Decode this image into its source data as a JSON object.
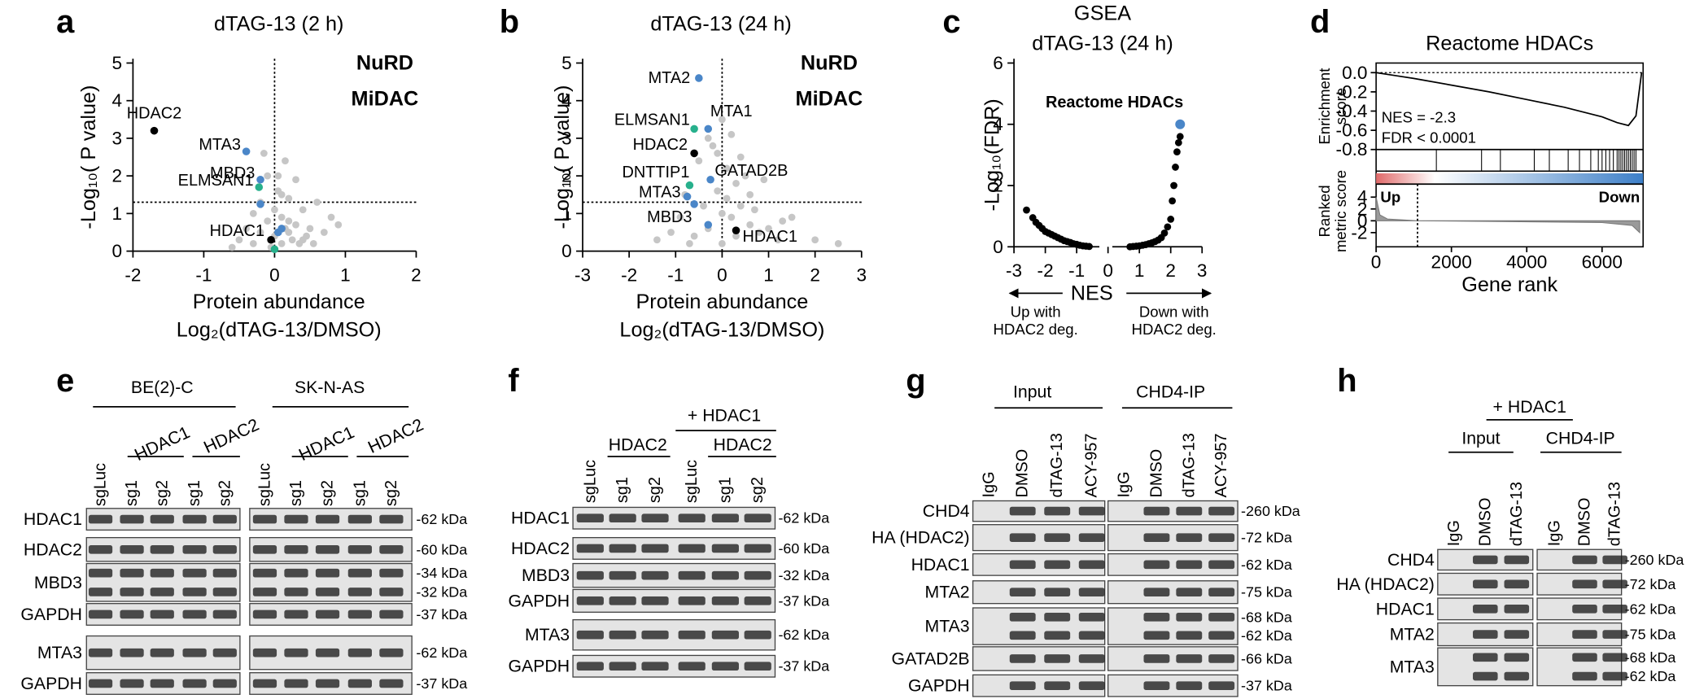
{
  "chart_data": [
    {
      "panel": "a",
      "type": "scatter",
      "title": "dTAG-13 (2 h)",
      "xlabel": [
        "Protein abundance",
        "Log₂(dTAG-13/DMSO)"
      ],
      "ylabel": "-Log₁₀( P value)",
      "xlim": [
        -2,
        2
      ],
      "xticks": [
        -2,
        -1,
        0,
        1,
        2
      ],
      "ylim": [
        0,
        5
      ],
      "yticks": [
        0,
        1,
        2,
        3,
        4,
        5
      ],
      "threshold_x": 0,
      "threshold_y": 1.3,
      "legend": [
        {
          "name": "NuRD",
          "color": "#4a86c8"
        },
        {
          "name": "MiDAC",
          "color": "#27b08c"
        }
      ],
      "background": {
        "color": "#c6c6c6",
        "x": [
          -0.5,
          -0.4,
          -0.3,
          -0.3,
          -0.2,
          -0.2,
          -0.1,
          -0.1,
          -0.05,
          0,
          0,
          0.05,
          0.1,
          0.1,
          0.15,
          0.2,
          0.2,
          0.25,
          0.3,
          0.3,
          0.35,
          0.4,
          0.45,
          0.5,
          0.6,
          0.7,
          0.8,
          -0.15,
          0.05,
          0.1,
          0.2,
          0.4,
          0.55,
          0.9,
          -0.6,
          0.15
        ],
        "y": [
          0.3,
          0.6,
          0.2,
          1.0,
          0.5,
          1.3,
          0.8,
          2.0,
          0.1,
          0.4,
          1.1,
          1.6,
          0.2,
          0.9,
          2.4,
          0.5,
          1.4,
          0.3,
          0.7,
          1.9,
          0.2,
          1.1,
          0.4,
          0.6,
          1.3,
          0.5,
          0.9,
          2.6,
          2.0,
          1.5,
          0.8,
          0.3,
          0.2,
          0.7,
          0.1,
          0.6
        ]
      },
      "points": [
        {
          "label": "HDAC2",
          "x": -1.7,
          "y": 3.2,
          "color": "#000000"
        },
        {
          "label": "MTA3",
          "x": -0.4,
          "y": 2.65,
          "color": "#4a86c8"
        },
        {
          "label": "MBD3",
          "x": -0.2,
          "y": 1.9,
          "color": "#4a86c8"
        },
        {
          "label": "ELMSAN1",
          "x": -0.22,
          "y": 1.7,
          "color": "#27b08c"
        },
        {
          "label": "HDAC1",
          "x": -0.05,
          "y": 0.3,
          "color": "#000000"
        },
        {
          "label": null,
          "x": -0.2,
          "y": 1.25,
          "color": "#4a86c8"
        },
        {
          "label": null,
          "x": 0.05,
          "y": 0.5,
          "color": "#4a86c8"
        },
        {
          "label": null,
          "x": 0.1,
          "y": 0.6,
          "color": "#4a86c8"
        },
        {
          "label": null,
          "x": 0.0,
          "y": 0.05,
          "color": "#27b08c"
        }
      ]
    },
    {
      "panel": "b",
      "type": "scatter",
      "title": "dTAG-13 (24 h)",
      "xlabel": [
        "Protein abundance",
        "Log₂(dTAG-13/DMSO)"
      ],
      "ylabel": "-Log₁₀( P value)",
      "xlim": [
        -3,
        3
      ],
      "xticks": [
        -3,
        -2,
        -1,
        0,
        1,
        2,
        3
      ],
      "ylim": [
        0,
        5
      ],
      "yticks": [
        0,
        1,
        2,
        3,
        4,
        5
      ],
      "threshold_x": 0,
      "threshold_y": 1.3,
      "legend": [
        {
          "name": "NuRD",
          "color": "#4a86c8"
        },
        {
          "name": "MiDAC",
          "color": "#27b08c"
        }
      ],
      "background": {
        "color": "#c6c6c6",
        "x": [
          -1.4,
          -1.1,
          -0.9,
          -0.8,
          -0.6,
          -0.5,
          -0.4,
          -0.3,
          -0.2,
          -0.1,
          0,
          0,
          0.1,
          0.2,
          0.3,
          0.3,
          0.4,
          0.5,
          0.6,
          0.7,
          0.8,
          1.0,
          1.2,
          1.5,
          2.0,
          2.5,
          -0.3,
          -0.1,
          0.1,
          0.2,
          0.4,
          0.6,
          -0.7,
          0.9,
          1.3,
          0.0
        ],
        "y": [
          0.3,
          0.5,
          0.9,
          1.5,
          0.4,
          2.4,
          1.2,
          0.6,
          2.8,
          1.6,
          0.2,
          3.5,
          2.2,
          0.9,
          1.8,
          0.4,
          1.2,
          2.0,
          0.7,
          1.1,
          0.5,
          0.6,
          0.3,
          0.9,
          0.3,
          0.2,
          3.0,
          2.6,
          1.4,
          3.1,
          2.5,
          1.5,
          0.2,
          1.9,
          0.8,
          1.0
        ]
      },
      "points": [
        {
          "label": "MTA2",
          "x": -0.5,
          "y": 4.6,
          "color": "#4a86c8"
        },
        {
          "label": "ELMSAN1",
          "x": -0.6,
          "y": 3.25,
          "color": "#27b08c"
        },
        {
          "label": "MTA1",
          "x": -0.3,
          "y": 3.25,
          "color": "#4a86c8"
        },
        {
          "label": "HDAC2",
          "x": -0.6,
          "y": 2.6,
          "color": "#000000"
        },
        {
          "label": "DNTTIP1",
          "x": -0.7,
          "y": 1.75,
          "color": "#27b08c"
        },
        {
          "label": "GATAD2B",
          "x": -0.25,
          "y": 1.9,
          "color": "#4a86c8"
        },
        {
          "label": "MTA3",
          "x": -0.75,
          "y": 1.45,
          "color": "#4a86c8"
        },
        {
          "label": "MBD3",
          "x": -0.6,
          "y": 1.25,
          "color": "#4a86c8"
        },
        {
          "label": "HDAC1",
          "x": 0.3,
          "y": 0.55,
          "color": "#000000"
        },
        {
          "label": null,
          "x": -0.3,
          "y": 0.7,
          "color": "#4a86c8"
        }
      ]
    },
    {
      "panel": "c",
      "type": "scatter",
      "title": [
        "GSEA",
        "dTAG-13 (24 h)"
      ],
      "xlabel": "NES",
      "ylabel": "-Log₁₀(FDR)",
      "xlim": [
        -3,
        3
      ],
      "xticks": [
        -3,
        -2,
        -1,
        0,
        1,
        2,
        3
      ],
      "ylim": [
        0,
        6
      ],
      "yticks": [
        0,
        2,
        4,
        6
      ],
      "annotations": {
        "left": [
          "Up with",
          "HDAC2 deg."
        ],
        "right": [
          "Down with",
          "HDAC2 deg."
        ]
      },
      "background": {
        "color": "#000000",
        "x": [
          -2.6,
          -2.4,
          -2.3,
          -2.2,
          -2.1,
          -2.0,
          -1.9,
          -1.8,
          -1.7,
          -1.6,
          -1.5,
          -1.4,
          -1.3,
          -1.2,
          -1.1,
          -1.0,
          -0.9,
          -0.8,
          -0.7,
          -0.6,
          0.7,
          0.8,
          0.9,
          1.0,
          1.1,
          1.2,
          1.3,
          1.4,
          1.5,
          1.6,
          1.7,
          1.8,
          1.9,
          2.0,
          2.05,
          2.1,
          2.15,
          2.2,
          2.25,
          2.3
        ],
        "y": [
          1.2,
          0.95,
          0.8,
          0.7,
          0.6,
          0.5,
          0.45,
          0.4,
          0.35,
          0.3,
          0.25,
          0.2,
          0.17,
          0.14,
          0.1,
          0.08,
          0.05,
          0.03,
          0.02,
          0.01,
          0,
          0.01,
          0.02,
          0.03,
          0.05,
          0.07,
          0.1,
          0.13,
          0.17,
          0.22,
          0.3,
          0.45,
          0.65,
          0.9,
          1.5,
          2.0,
          2.6,
          3.1,
          3.4,
          3.6
        ]
      },
      "points": [
        {
          "label": "Reactome HDACs",
          "x": 2.3,
          "y": 4.0,
          "color": "#4a86c8"
        }
      ]
    },
    {
      "panel": "d",
      "type": "gsea",
      "title": "Reactome HDACs",
      "ylabel": [
        "Enrichment",
        "score"
      ],
      "ylabel2": [
        "Ranked",
        "metric score"
      ],
      "xlabel": "Gene rank",
      "xlim": [
        0,
        7090
      ],
      "xticks": [
        0,
        2000,
        4000,
        6000
      ],
      "ylim": [
        -0.8,
        0.1
      ],
      "yticks": [
        {
          "value": 0,
          "label": "0.0"
        },
        -0.2,
        -0.4,
        -0.6,
        -0.8
      ],
      "y2lim": [
        -4.4,
        6.2
      ],
      "y2ticks": [
        4,
        2,
        0,
        -2
      ],
      "stats": [
        "NES = -2.3",
        "FDR < 0.0001"
      ],
      "ends": [
        {
          "name": "Up",
          "color": "#c0313a"
        },
        {
          "name": "Down",
          "color": "#2a74c0"
        }
      ],
      "running_es": {
        "x": [
          0,
          500,
          1000,
          2000,
          3000,
          4000,
          5000,
          6000,
          6400,
          6700,
          6900,
          7000,
          7050
        ],
        "y": [
          0,
          -0.03,
          -0.06,
          -0.13,
          -0.2,
          -0.28,
          -0.36,
          -0.46,
          -0.52,
          -0.55,
          -0.45,
          -0.15,
          0
        ]
      },
      "hits": [
        1600,
        2800,
        3300,
        4200,
        4600,
        5100,
        5400,
        5700,
        5900,
        6000,
        6100,
        6200,
        6300,
        6400,
        6450,
        6500,
        6550,
        6600,
        6650,
        6700,
        6750,
        6800,
        6850,
        6900
      ],
      "ranked_metric": {
        "x": [
          0,
          100,
          300,
          1100,
          3000,
          6000,
          6800,
          7000
        ],
        "y": [
          4,
          1,
          0.3,
          0,
          -0.1,
          -0.3,
          -0.8,
          -2
        ]
      },
      "zero_cross": 1100
    }
  ],
  "blots": [
    {
      "panel": "e",
      "groups": [
        "BE(2)-C",
        "SK-N-AS"
      ],
      "subgroups": [
        "HDAC1",
        "HDAC2",
        "HDAC1",
        "HDAC2"
      ],
      "lanes": [
        "sgLuc",
        "sg1",
        "sg2",
        "sg1",
        "sg2",
        "sgLuc",
        "sg1",
        "sg2",
        "sg1",
        "sg2"
      ],
      "rows": [
        {
          "label": "HDAC1",
          "markers": [
            "-62 kDa"
          ]
        },
        {
          "label": "HDAC2",
          "markers": [
            "-60 kDa"
          ]
        },
        {
          "label": "MBD3",
          "markers": [
            "-34 kDa",
            "-32 kDa"
          ]
        },
        {
          "label": "GAPDH",
          "markers": [
            "-37 kDa"
          ]
        },
        {
          "label": "MTA3",
          "markers": [
            "-62 kDa"
          ]
        },
        {
          "label": "GAPDH",
          "markers": [
            "-37 kDa"
          ]
        }
      ]
    },
    {
      "panel": "f",
      "header": "+ HDAC1",
      "subgroups": [
        "HDAC2",
        "HDAC2"
      ],
      "lanes": [
        "sgLuc",
        "sg1",
        "sg2",
        "sgLuc",
        "sg1",
        "sg2"
      ],
      "rows": [
        {
          "label": "HDAC1",
          "markers": [
            "-62 kDa"
          ]
        },
        {
          "label": "HDAC2",
          "markers": [
            "-60 kDa"
          ]
        },
        {
          "label": "MBD3",
          "markers": [
            "-32 kDa"
          ]
        },
        {
          "label": "GAPDH",
          "markers": [
            "-37 kDa"
          ]
        },
        {
          "label": "MTA3",
          "markers": [
            "-62 kDa"
          ]
        },
        {
          "label": "GAPDH",
          "markers": [
            "-37 kDa"
          ]
        }
      ]
    },
    {
      "panel": "g",
      "groups": [
        "Input",
        "CHD4-IP"
      ],
      "lanes": [
        "IgG",
        "DMSO",
        "dTAG-13",
        "ACY-957",
        "IgG",
        "DMSO",
        "dTAG-13",
        "ACY-957"
      ],
      "rows": [
        {
          "label": "CHD4",
          "markers": [
            "-260 kDa"
          ]
        },
        {
          "label": "HA (HDAC2)",
          "markers": [
            "-72 kDa"
          ]
        },
        {
          "label": "HDAC1",
          "markers": [
            "-62 kDa"
          ]
        },
        {
          "label": "MTA2",
          "markers": [
            "-75 kDa"
          ]
        },
        {
          "label": "MTA3",
          "markers": [
            "-68 kDa",
            "-62 kDa"
          ]
        },
        {
          "label": "GATAD2B",
          "markers": [
            "-66 kDa"
          ]
        },
        {
          "label": "GAPDH",
          "markers": [
            "-37 kDa"
          ]
        }
      ]
    },
    {
      "panel": "h",
      "header": "+ HDAC1",
      "groups": [
        "Input",
        "CHD4-IP"
      ],
      "lanes": [
        "IgG",
        "DMSO",
        "dTAG-13",
        "IgG",
        "DMSO",
        "dTAG-13"
      ],
      "rows": [
        {
          "label": "CHD4",
          "markers": [
            "-260 kDa"
          ]
        },
        {
          "label": "HA (HDAC2)",
          "markers": [
            "-72 kDa"
          ]
        },
        {
          "label": "HDAC1",
          "markers": [
            "-62 kDa"
          ]
        },
        {
          "label": "MTA2",
          "markers": [
            "-75 kDa"
          ]
        },
        {
          "label": "MTA3",
          "markers": [
            "-68 kDa",
            "-62 kDa"
          ]
        }
      ]
    }
  ]
}
